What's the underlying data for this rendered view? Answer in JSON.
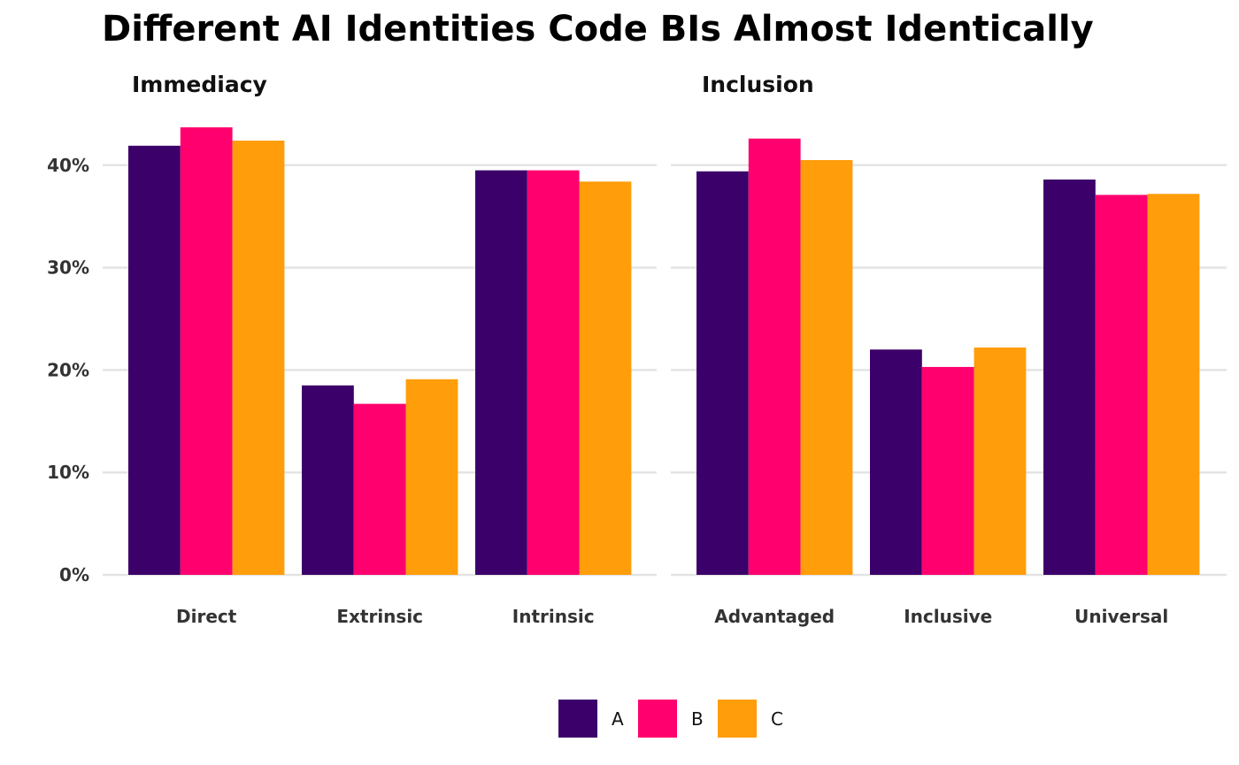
{
  "chart_data": {
    "type": "bar",
    "title": "Different AI Identities Code BIs Almost Identically",
    "xlabel": "",
    "ylabel": "",
    "ylim": [
      0,
      45
    ],
    "yticks": [
      "0%",
      "10%",
      "20%",
      "30%",
      "40%"
    ],
    "grid": true,
    "legend_position": "bottom",
    "series_names": [
      "A",
      "B",
      "C"
    ],
    "colors": {
      "A": "#3b0069",
      "B": "#ff006e",
      "C": "#ff9d0a"
    },
    "panels": [
      {
        "title": "Immediacy",
        "categories": [
          "Direct",
          "Extrinsic",
          "Intrinsic"
        ],
        "series": [
          {
            "name": "A",
            "values": [
              41.9,
              18.5,
              39.5
            ]
          },
          {
            "name": "B",
            "values": [
              43.7,
              16.7,
              39.5
            ]
          },
          {
            "name": "C",
            "values": [
              42.4,
              19.1,
              38.4
            ]
          }
        ]
      },
      {
        "title": "Inclusion",
        "categories": [
          "Advantaged",
          "Inclusive",
          "Universal"
        ],
        "series": [
          {
            "name": "A",
            "values": [
              39.4,
              22.0,
              38.6
            ]
          },
          {
            "name": "B",
            "values": [
              42.6,
              20.3,
              37.1
            ]
          },
          {
            "name": "C",
            "values": [
              40.5,
              22.2,
              37.2
            ]
          }
        ]
      }
    ]
  }
}
